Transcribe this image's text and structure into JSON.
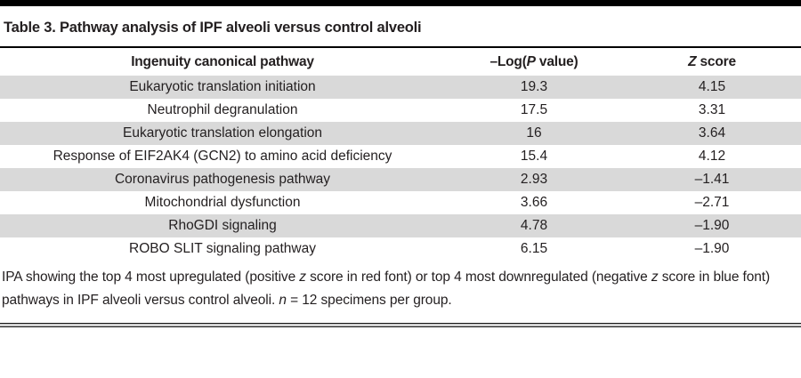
{
  "title": "Table 3. Pathway analysis of IPF alveoli versus control alveoli",
  "table": {
    "headers": {
      "pathway": [
        {
          "text": "Ingenuity canonical pathway"
        }
      ],
      "log_p": [
        {
          "text": "–Log("
        },
        {
          "text": "P",
          "italic": true
        },
        {
          "text": " value)"
        }
      ],
      "z_score": [
        {
          "text": "Z",
          "italic": true
        },
        {
          "text": " score"
        }
      ]
    },
    "rows": [
      {
        "pathway": "Eukaryotic translation initiation",
        "log_p": "19.3",
        "z_score": "4.15"
      },
      {
        "pathway": "Neutrophil degranulation",
        "log_p": "17.5",
        "z_score": "3.31"
      },
      {
        "pathway": "Eukaryotic translation elongation",
        "log_p": "16",
        "z_score": "3.64"
      },
      {
        "pathway": "Response of EIF2AK4 (GCN2) to amino acid deficiency",
        "log_p": "15.4",
        "z_score": "4.12"
      },
      {
        "pathway": "Coronavirus pathogenesis pathway",
        "log_p": "2.93",
        "z_score": "–1.41"
      },
      {
        "pathway": "Mitochondrial dysfunction",
        "log_p": "3.66",
        "z_score": "–2.71"
      },
      {
        "pathway": "RhoGDI signaling",
        "log_p": "4.78",
        "z_score": "–1.90"
      },
      {
        "pathway": "ROBO SLIT signaling pathway",
        "log_p": "6.15",
        "z_score": "–1.90"
      }
    ]
  },
  "caption_segments": [
    {
      "text": "IPA showing the top 4 most upregulated (positive "
    },
    {
      "text": "z",
      "italic": true
    },
    {
      "text": " score in red font) or top 4 most downregulated (negative "
    },
    {
      "text": "z",
      "italic": true
    },
    {
      "text": " score in blue font) pathways in IPF alveoli versus control alveoli. "
    },
    {
      "text": "n",
      "italic": true
    },
    {
      "text": " = 12 specimens per group."
    }
  ],
  "colors": {
    "text": "#231f20",
    "row_stripe": "#d9d9d9",
    "rule": "#000000"
  }
}
